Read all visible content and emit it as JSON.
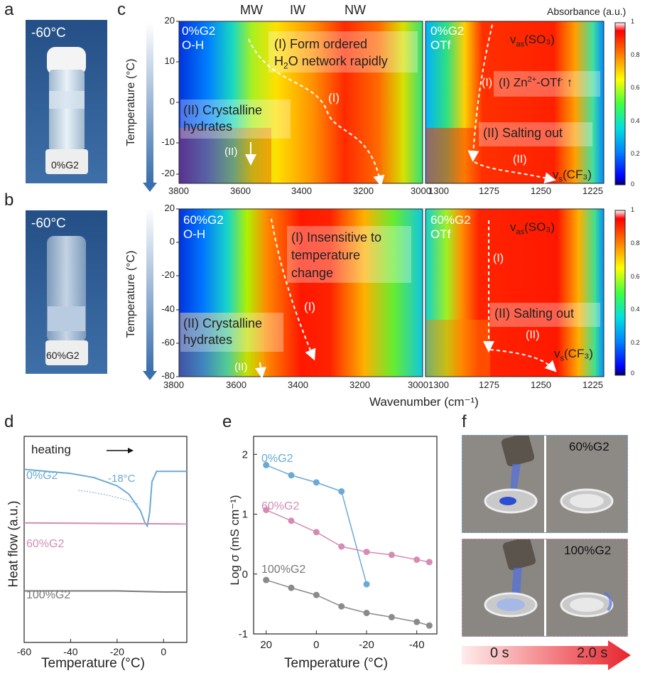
{
  "panel_letters": {
    "a": "a",
    "b": "b",
    "c": "c",
    "d": "d",
    "e": "e",
    "f": "f"
  },
  "panel_a": {
    "temp": "-60°C",
    "sample": "0%G2"
  },
  "panel_b": {
    "temp": "-60°C",
    "sample": "60%G2"
  },
  "panel_c": {
    "water_labels": [
      "MW",
      "IW",
      "NW"
    ],
    "ylabel": "Temperature (°C)",
    "xlabel": "Wavenumber (cm⁻¹)",
    "colorbar_title": "Absorbance (a.u.)",
    "colorbar_ticks": [
      "1",
      "0.8",
      "0.6",
      "0.4",
      "0.2",
      "0"
    ],
    "top_y_ticks": [
      "20",
      "10",
      "0",
      "-10",
      "-20"
    ],
    "bottom_y_ticks": [
      "20",
      "0",
      "-20",
      "-40",
      "-60",
      "-80"
    ],
    "left_x_ticks": [
      "3800",
      "3600",
      "3400",
      "3200",
      "3000"
    ],
    "right_x_ticks": [
      "1300",
      "1275",
      "1250",
      "1225"
    ],
    "tl": {
      "tag1": "0%G2",
      "tag2": "O-H",
      "ann1a": "(I) Form ordered",
      "ann1b_pre": "H",
      "ann1b_sub": "2",
      "ann1b_post": "O network rapidly",
      "mark_i": "(I)",
      "ann2a": "(II) Crystalline",
      "ann2b": "hydrates",
      "mark_ii": "(II)"
    },
    "tr": {
      "tag1": "0%G2",
      "tag2": "OTf",
      "vas": "v",
      "vas_sub": "as",
      "vas_post": "(SO₃)",
      "ann1_pre": "(I) Zn",
      "ann1_sup1": "2+",
      "ann1_mid": "-OTf",
      "ann1_sup2": "-",
      "ann1_arrow": "↑",
      "mark_i": "(I)",
      "ann2": "(II) Salting out",
      "mark_ii": "(II)",
      "vs": "v",
      "vs_sub": "s",
      "vs_post": "(CF₃)"
    },
    "bl": {
      "tag1": "60%G2",
      "tag2": "O-H",
      "ann1a": "(I) Insensitive to",
      "ann1b": "temperature",
      "ann1c": "change",
      "mark_i": "(I)",
      "ann2a": "(II) Crystalline",
      "ann2b": "hydrates",
      "mark_ii": "(II)"
    },
    "br": {
      "tag1": "60%G2",
      "tag2": "OTf",
      "vas": "v",
      "vas_sub": "as",
      "vas_post": "(SO₃)",
      "mark_i": "(I)",
      "ann2": "(II) Salting out",
      "mark_ii": "(II)",
      "vs": "v",
      "vs_sub": "s",
      "vs_post": "(CF₃)"
    }
  },
  "chart_data": [
    {
      "type": "line",
      "panel": "d",
      "xlabel": "Temperature (°C)",
      "ylabel": "Heat flow (a.u.)",
      "x_ticks": [
        "-60",
        "-40",
        "-20",
        "0"
      ],
      "xlim": [
        -60,
        10
      ],
      "annotations": [
        "heating",
        "-18°C"
      ],
      "series": [
        {
          "name": "0%G2",
          "color": "#6aaad6",
          "x": [
            -60,
            -40,
            -30,
            -20,
            -15,
            -10,
            -8,
            -7,
            -6,
            -5,
            -3,
            0,
            10
          ],
          "y": [
            0.84,
            0.82,
            0.8,
            0.76,
            0.72,
            0.64,
            0.58,
            0.565,
            0.63,
            0.78,
            0.83,
            0.83,
            0.83
          ]
        },
        {
          "name": "60%G2",
          "color": "#d48cb4",
          "x": [
            -60,
            10
          ],
          "y": [
            0.58,
            0.575
          ]
        },
        {
          "name": "100%G2",
          "color": "#777777",
          "x": [
            -60,
            -20,
            0,
            10
          ],
          "y": [
            0.25,
            0.25,
            0.245,
            0.245
          ]
        }
      ]
    },
    {
      "type": "line",
      "panel": "e",
      "xlabel": "Temperature (°C)",
      "ylabel": "Log σ (mS cm⁻¹)",
      "x_ticks": [
        "20",
        "0",
        "-20",
        "-40"
      ],
      "y_ticks": [
        "2",
        "1",
        "0",
        "-1"
      ],
      "xlim": [
        25,
        -48
      ],
      "ylim": [
        -1,
        2.3
      ],
      "series": [
        {
          "name": "0%G2",
          "color": "#6aaad6",
          "x": [
            20,
            10,
            0,
            -10,
            -20
          ],
          "y": [
            1.82,
            1.65,
            1.53,
            1.38,
            -0.17
          ]
        },
        {
          "name": "60%G2",
          "color": "#d48cb4",
          "x": [
            20,
            10,
            0,
            -10,
            -20,
            -30,
            -40,
            -45
          ],
          "y": [
            1.07,
            0.89,
            0.7,
            0.46,
            0.37,
            0.32,
            0.24,
            0.2
          ]
        },
        {
          "name": "100%G2",
          "color": "#8a8a8a",
          "x": [
            20,
            10,
            0,
            -10,
            -20,
            -30,
            -40,
            -45
          ],
          "y": [
            -0.1,
            -0.23,
            -0.35,
            -0.54,
            -0.65,
            -0.72,
            -0.8,
            -0.86
          ]
        }
      ]
    }
  ],
  "panel_f": {
    "label_top": "60%G2",
    "label_bottom": "100%G2",
    "time_start": "0 s",
    "time_end": "2.0 s"
  }
}
